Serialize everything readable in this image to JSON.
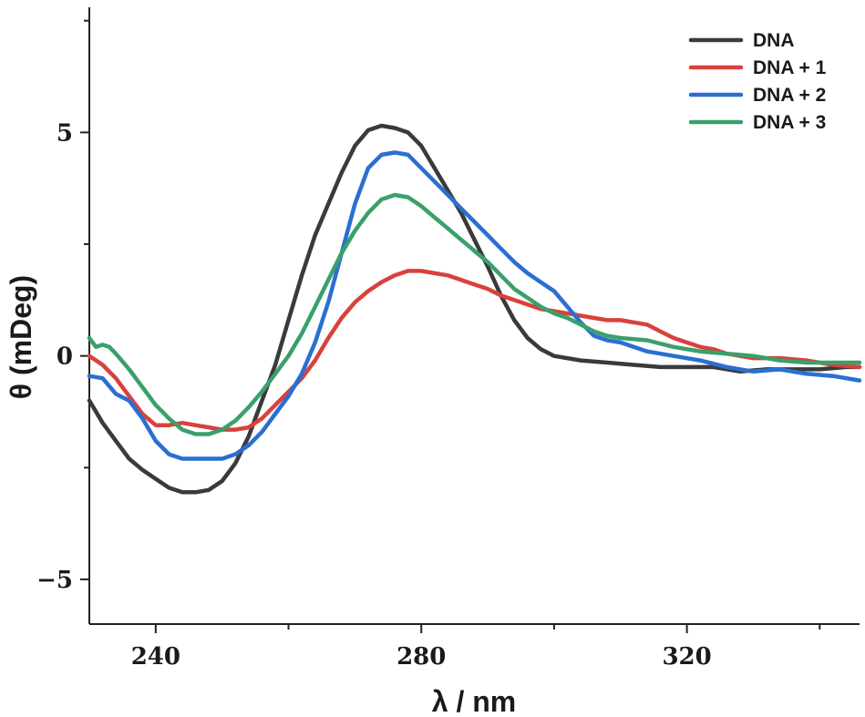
{
  "chart_data": {
    "type": "line",
    "title": "",
    "xlabel": "λ / nm",
    "ylabel": "θ (mDeg)",
    "xlim": [
      230,
      346
    ],
    "ylim": [
      -6,
      7.8
    ],
    "x_ticks": [
      240,
      280,
      320
    ],
    "x_minor_ticks": [
      260,
      300,
      340
    ],
    "y_ticks": [
      -5,
      0,
      5
    ],
    "y_minor_ticks": [
      -2.5,
      2.5,
      7.5
    ],
    "y_tick_labels": [
      "−5",
      "0",
      "5"
    ],
    "grid": false,
    "legend_position": "top-right",
    "series": [
      {
        "name": "DNA",
        "color": "#3a3a3a",
        "points": [
          [
            230,
            -1.0
          ],
          [
            232,
            -1.5
          ],
          [
            234,
            -1.9
          ],
          [
            236,
            -2.3
          ],
          [
            238,
            -2.55
          ],
          [
            240,
            -2.75
          ],
          [
            242,
            -2.95
          ],
          [
            244,
            -3.05
          ],
          [
            246,
            -3.05
          ],
          [
            248,
            -3.0
          ],
          [
            250,
            -2.8
          ],
          [
            252,
            -2.4
          ],
          [
            254,
            -1.8
          ],
          [
            256,
            -1.0
          ],
          [
            258,
            -0.2
          ],
          [
            260,
            0.8
          ],
          [
            262,
            1.8
          ],
          [
            264,
            2.7
          ],
          [
            266,
            3.4
          ],
          [
            268,
            4.1
          ],
          [
            270,
            4.7
          ],
          [
            272,
            5.05
          ],
          [
            274,
            5.15
          ],
          [
            276,
            5.1
          ],
          [
            278,
            5.0
          ],
          [
            280,
            4.7
          ],
          [
            282,
            4.2
          ],
          [
            284,
            3.7
          ],
          [
            286,
            3.2
          ],
          [
            288,
            2.6
          ],
          [
            290,
            2.0
          ],
          [
            292,
            1.35
          ],
          [
            294,
            0.8
          ],
          [
            296,
            0.4
          ],
          [
            298,
            0.15
          ],
          [
            300,
            0.0
          ],
          [
            304,
            -0.1
          ],
          [
            308,
            -0.15
          ],
          [
            312,
            -0.2
          ],
          [
            316,
            -0.25
          ],
          [
            320,
            -0.25
          ],
          [
            324,
            -0.25
          ],
          [
            328,
            -0.35
          ],
          [
            332,
            -0.3
          ],
          [
            336,
            -0.3
          ],
          [
            340,
            -0.3
          ],
          [
            344,
            -0.25
          ],
          [
            346,
            -0.25
          ]
        ]
      },
      {
        "name": "DNA + 1",
        "color": "#d9413c",
        "points": [
          [
            230,
            0.0
          ],
          [
            232,
            -0.2
          ],
          [
            234,
            -0.5
          ],
          [
            236,
            -0.9
          ],
          [
            238,
            -1.3
          ],
          [
            240,
            -1.55
          ],
          [
            242,
            -1.55
          ],
          [
            244,
            -1.5
          ],
          [
            246,
            -1.55
          ],
          [
            248,
            -1.6
          ],
          [
            250,
            -1.65
          ],
          [
            252,
            -1.65
          ],
          [
            254,
            -1.6
          ],
          [
            256,
            -1.4
          ],
          [
            258,
            -1.1
          ],
          [
            260,
            -0.8
          ],
          [
            262,
            -0.5
          ],
          [
            264,
            -0.1
          ],
          [
            266,
            0.4
          ],
          [
            268,
            0.85
          ],
          [
            270,
            1.2
          ],
          [
            272,
            1.45
          ],
          [
            274,
            1.65
          ],
          [
            276,
            1.8
          ],
          [
            278,
            1.9
          ],
          [
            280,
            1.9
          ],
          [
            282,
            1.85
          ],
          [
            284,
            1.8
          ],
          [
            286,
            1.7
          ],
          [
            288,
            1.6
          ],
          [
            290,
            1.5
          ],
          [
            292,
            1.35
          ],
          [
            294,
            1.25
          ],
          [
            296,
            1.15
          ],
          [
            298,
            1.05
          ],
          [
            300,
            1.0
          ],
          [
            302,
            0.95
          ],
          [
            304,
            0.9
          ],
          [
            306,
            0.85
          ],
          [
            308,
            0.8
          ],
          [
            310,
            0.8
          ],
          [
            312,
            0.75
          ],
          [
            314,
            0.7
          ],
          [
            316,
            0.55
          ],
          [
            318,
            0.4
          ],
          [
            320,
            0.3
          ],
          [
            322,
            0.2
          ],
          [
            324,
            0.15
          ],
          [
            326,
            0.05
          ],
          [
            328,
            0.0
          ],
          [
            330,
            -0.05
          ],
          [
            334,
            -0.05
          ],
          [
            338,
            -0.1
          ],
          [
            342,
            -0.2
          ],
          [
            346,
            -0.25
          ]
        ]
      },
      {
        "name": "DNA + 2",
        "color": "#2a6fd1",
        "points": [
          [
            230,
            -0.45
          ],
          [
            232,
            -0.5
          ],
          [
            234,
            -0.85
          ],
          [
            236,
            -1.0
          ],
          [
            238,
            -1.4
          ],
          [
            240,
            -1.9
          ],
          [
            242,
            -2.2
          ],
          [
            244,
            -2.3
          ],
          [
            246,
            -2.3
          ],
          [
            248,
            -2.3
          ],
          [
            250,
            -2.3
          ],
          [
            252,
            -2.2
          ],
          [
            254,
            -2.0
          ],
          [
            256,
            -1.7
          ],
          [
            258,
            -1.3
          ],
          [
            260,
            -0.9
          ],
          [
            262,
            -0.4
          ],
          [
            264,
            0.3
          ],
          [
            266,
            1.2
          ],
          [
            268,
            2.3
          ],
          [
            270,
            3.4
          ],
          [
            272,
            4.2
          ],
          [
            274,
            4.5
          ],
          [
            276,
            4.55
          ],
          [
            278,
            4.5
          ],
          [
            280,
            4.2
          ],
          [
            282,
            3.9
          ],
          [
            284,
            3.6
          ],
          [
            286,
            3.3
          ],
          [
            288,
            3.0
          ],
          [
            290,
            2.7
          ],
          [
            292,
            2.4
          ],
          [
            294,
            2.1
          ],
          [
            296,
            1.85
          ],
          [
            298,
            1.65
          ],
          [
            300,
            1.45
          ],
          [
            302,
            1.1
          ],
          [
            304,
            0.75
          ],
          [
            306,
            0.45
          ],
          [
            308,
            0.35
          ],
          [
            310,
            0.3
          ],
          [
            314,
            0.1
          ],
          [
            318,
            0.0
          ],
          [
            322,
            -0.1
          ],
          [
            326,
            -0.25
          ],
          [
            330,
            -0.35
          ],
          [
            334,
            -0.3
          ],
          [
            338,
            -0.4
          ],
          [
            342,
            -0.45
          ],
          [
            346,
            -0.55
          ]
        ]
      },
      {
        "name": "DNA + 3",
        "color": "#3aa06a",
        "points": [
          [
            230,
            0.4
          ],
          [
            231,
            0.2
          ],
          [
            232,
            0.25
          ],
          [
            233,
            0.2
          ],
          [
            234,
            0.05
          ],
          [
            236,
            -0.3
          ],
          [
            238,
            -0.7
          ],
          [
            240,
            -1.1
          ],
          [
            242,
            -1.4
          ],
          [
            244,
            -1.65
          ],
          [
            246,
            -1.75
          ],
          [
            248,
            -1.75
          ],
          [
            250,
            -1.65
          ],
          [
            252,
            -1.45
          ],
          [
            254,
            -1.15
          ],
          [
            256,
            -0.8
          ],
          [
            258,
            -0.4
          ],
          [
            260,
            0.0
          ],
          [
            262,
            0.5
          ],
          [
            264,
            1.1
          ],
          [
            266,
            1.7
          ],
          [
            268,
            2.3
          ],
          [
            270,
            2.8
          ],
          [
            272,
            3.2
          ],
          [
            274,
            3.5
          ],
          [
            276,
            3.6
          ],
          [
            278,
            3.55
          ],
          [
            280,
            3.35
          ],
          [
            282,
            3.1
          ],
          [
            284,
            2.85
          ],
          [
            286,
            2.6
          ],
          [
            288,
            2.35
          ],
          [
            290,
            2.1
          ],
          [
            292,
            1.8
          ],
          [
            294,
            1.5
          ],
          [
            296,
            1.3
          ],
          [
            298,
            1.1
          ],
          [
            300,
            0.95
          ],
          [
            302,
            0.85
          ],
          [
            304,
            0.7
          ],
          [
            306,
            0.55
          ],
          [
            308,
            0.45
          ],
          [
            310,
            0.4
          ],
          [
            314,
            0.35
          ],
          [
            318,
            0.2
          ],
          [
            322,
            0.1
          ],
          [
            326,
            0.05
          ],
          [
            330,
            0.0
          ],
          [
            334,
            -0.1
          ],
          [
            338,
            -0.15
          ],
          [
            342,
            -0.15
          ],
          [
            346,
            -0.15
          ]
        ]
      }
    ]
  }
}
